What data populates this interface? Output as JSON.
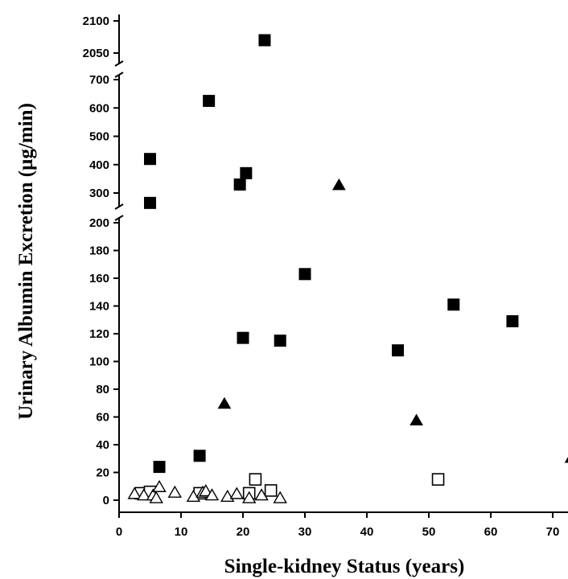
{
  "chart_data": {
    "type": "scatter",
    "title": "",
    "xlabel": "Single-kidney Status (years)",
    "ylabel": "Urinary Albumin Excretion (µg/min)",
    "xlim": [
      0,
      73
    ],
    "x_ticks": [
      0,
      10,
      20,
      30,
      40,
      50,
      60,
      70
    ],
    "y_axis_broken": true,
    "y_segments": [
      {
        "range": [
          0,
          200
        ],
        "ticks": [
          0,
          20,
          40,
          60,
          80,
          100,
          120,
          140,
          160,
          180,
          200
        ]
      },
      {
        "range": [
          300,
          700
        ],
        "ticks": [
          300,
          400,
          500,
          600,
          700
        ]
      },
      {
        "range": [
          2050,
          2100
        ],
        "ticks": [
          2050,
          2100
        ]
      }
    ],
    "grid": false,
    "legend": "none",
    "series": [
      {
        "marker": "filled-square",
        "points": [
          [
            5,
            420
          ],
          [
            5,
            265
          ],
          [
            6.5,
            24
          ],
          [
            13,
            32
          ],
          [
            14.5,
            625
          ],
          [
            19.5,
            330
          ],
          [
            20.5,
            370
          ],
          [
            20,
            117
          ],
          [
            23.5,
            2070
          ],
          [
            26,
            115
          ],
          [
            30,
            163
          ],
          [
            45,
            108
          ],
          [
            54,
            141
          ],
          [
            63.5,
            129
          ]
        ]
      },
      {
        "marker": "open-square",
        "points": [
          [
            3.5,
            5
          ],
          [
            5,
            6
          ],
          [
            13,
            5
          ],
          [
            21,
            5
          ],
          [
            22,
            15
          ],
          [
            24.5,
            7
          ],
          [
            51.5,
            15
          ]
        ]
      },
      {
        "marker": "filled-triangle",
        "points": [
          [
            17,
            70
          ],
          [
            35.5,
            330
          ],
          [
            48,
            58
          ],
          [
            73,
            31
          ]
        ]
      },
      {
        "marker": "open-triangle",
        "points": [
          [
            2.5,
            5
          ],
          [
            4,
            4
          ],
          [
            5.5,
            4
          ],
          [
            6,
            2
          ],
          [
            6.5,
            10
          ],
          [
            9,
            6
          ],
          [
            12,
            3
          ],
          [
            13.5,
            6
          ],
          [
            14,
            7
          ],
          [
            15,
            4
          ],
          [
            17.5,
            3
          ],
          [
            19,
            5
          ],
          [
            21,
            2
          ],
          [
            23,
            4
          ],
          [
            26,
            2
          ]
        ]
      }
    ]
  }
}
